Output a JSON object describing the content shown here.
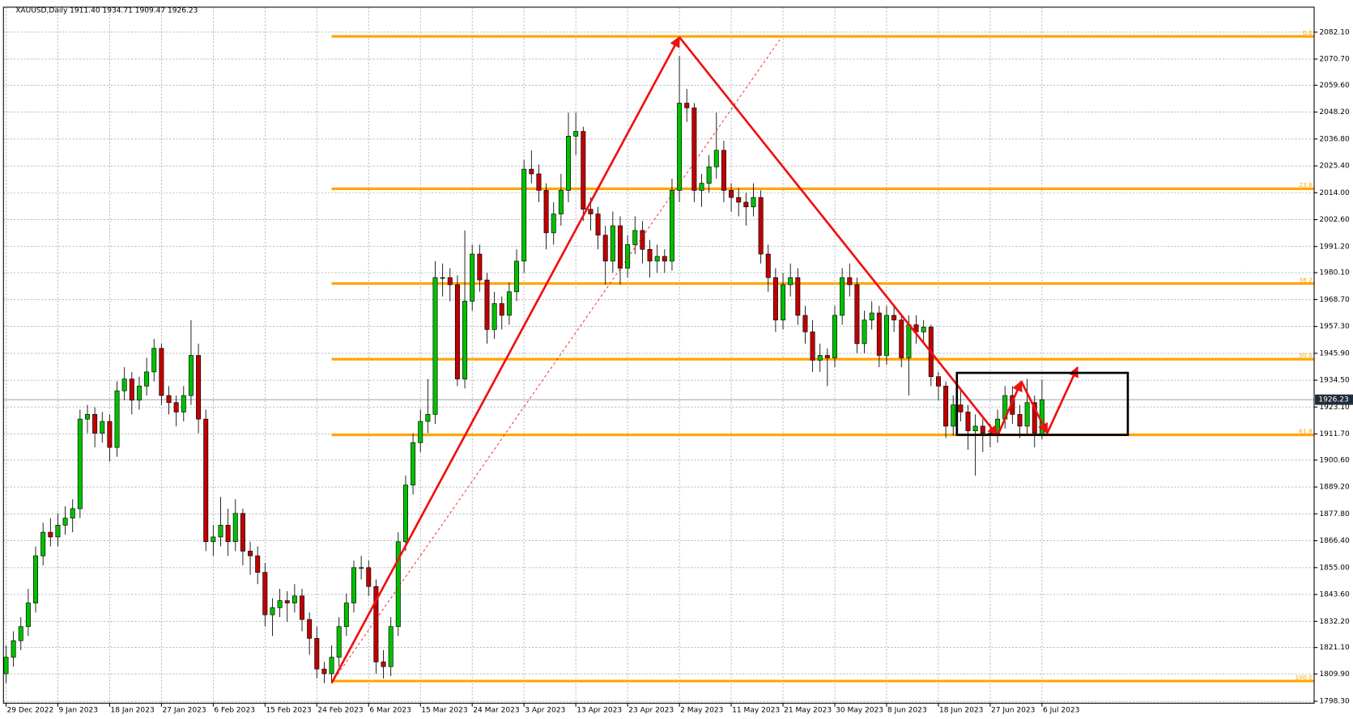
{
  "chart_data": {
    "type": "candlestick",
    "title": "XAUUSD,Daily  1911.40 1934.71 1909.47 1926.23",
    "up_color": "#00c000",
    "down_color": "#c00000",
    "grid": true,
    "ylim": [
      1797.5,
      2092.7
    ],
    "yticks": [
      {
        "value": 2082.1,
        "label": "2082.10"
      },
      {
        "value": 2070.7,
        "label": "2070.70"
      },
      {
        "value": 2059.6,
        "label": "2059.60"
      },
      {
        "value": 2048.2,
        "label": "2048.20"
      },
      {
        "value": 2036.8,
        "label": "2036.80"
      },
      {
        "value": 2025.4,
        "label": "2025.40"
      },
      {
        "value": 2014,
        "label": "2014.00"
      },
      {
        "value": 2002.6,
        "label": "2002.60"
      },
      {
        "value": 1991.2,
        "label": "1991.20"
      },
      {
        "value": 1980.1,
        "label": "1980.10"
      },
      {
        "value": 1968.7,
        "label": "1968.70"
      },
      {
        "value": 1957.3,
        "label": "1957.30"
      },
      {
        "value": 1945.9,
        "label": "1945.90"
      },
      {
        "value": 1934.5,
        "label": "1934.50"
      },
      {
        "value": 1923.1,
        "label": "1923.10"
      },
      {
        "value": 1911.7,
        "label": "1911.70"
      },
      {
        "value": 1900.6,
        "label": "1900.60"
      },
      {
        "value": 1889.2,
        "label": "1889.20"
      },
      {
        "value": 1877.8,
        "label": "1877.80"
      },
      {
        "value": 1866.4,
        "label": "1866.40"
      },
      {
        "value": 1855,
        "label": "1855.00"
      },
      {
        "value": 1843.6,
        "label": "1843.60"
      },
      {
        "value": 1832.2,
        "label": "1832.20"
      },
      {
        "value": 1821.1,
        "label": "1821.10"
      },
      {
        "value": 1809.9,
        "label": "1809.90"
      },
      {
        "value": 1798.3,
        "label": "1798.30"
      }
    ],
    "xticks": [
      {
        "value": 0,
        "label": "29 Dec 2022"
      },
      {
        "value": 7,
        "label": "9 Jan 2023"
      },
      {
        "value": 14,
        "label": "18 Jan 2023"
      },
      {
        "value": 21,
        "label": "27 Jan 2023"
      },
      {
        "value": 28,
        "label": "6 Feb 2023"
      },
      {
        "value": 35,
        "label": "15 Feb 2023"
      },
      {
        "value": 42,
        "label": "24 Feb 2023"
      },
      {
        "value": 49,
        "label": "6 Mar 2023"
      },
      {
        "value": 56,
        "label": "15 Mar 2023"
      },
      {
        "value": 63,
        "label": "24 Mar 2023"
      },
      {
        "value": 70,
        "label": "3 Apr 2023"
      },
      {
        "value": 77,
        "label": "13 Apr 2023"
      },
      {
        "value": 84,
        "label": "23 Apr 2023"
      },
      {
        "value": 91,
        "label": "2 May 2023"
      },
      {
        "value": 98,
        "label": "11 May 2023"
      },
      {
        "value": 105,
        "label": "21 May 2023"
      },
      {
        "value": 112,
        "label": "30 May 2023"
      },
      {
        "value": 119,
        "label": "8 Jun 2023"
      },
      {
        "value": 126,
        "label": "18 Jun 2023"
      },
      {
        "value": 133,
        "label": "27 Jun 2023"
      },
      {
        "value": 140,
        "label": "6 Jul 2023"
      }
    ],
    "last_price": {
      "value": 1926.23,
      "label": "1926.23"
    },
    "fib_levels": [
      {
        "value": 2080.3,
        "label": "0.0"
      },
      {
        "value": 2015.7,
        "label": "23.6"
      },
      {
        "value": 1975.5,
        "label": "38.2"
      },
      {
        "value": 1943.4,
        "label": "50.0"
      },
      {
        "value": 1911.3,
        "label": "61.8"
      },
      {
        "value": 1806.9,
        "label": "100.0"
      }
    ],
    "fib_start": 44,
    "arrows": [
      [
        [
          44,
          1806
        ],
        [
          91,
          2080
        ]
      ],
      [
        [
          91,
          2080
        ],
        [
          134,
          1911
        ]
      ],
      [
        [
          134,
          1911
        ],
        [
          137.2,
          1934
        ]
      ],
      [
        [
          137.2,
          1934
        ],
        [
          140.7,
          1912
        ]
      ],
      [
        [
          140.7,
          1912
        ],
        [
          144.8,
          1940
        ]
      ]
    ],
    "dashed_line": [
      [
        44,
        1806
      ],
      [
        104.8,
        2080
      ]
    ],
    "box": [
      [
        128.5,
        1937.6
      ],
      [
        151.6,
        1911.3
      ]
    ],
    "candles": [
      [
        1810,
        1822,
        1806,
        1817
      ],
      [
        1817,
        1828,
        1813,
        1824
      ],
      [
        1824,
        1834,
        1820,
        1830
      ],
      [
        1830,
        1846,
        1826,
        1840
      ],
      [
        1840,
        1864,
        1836,
        1860
      ],
      [
        1860,
        1874,
        1856,
        1870
      ],
      [
        1870,
        1876,
        1864,
        1868
      ],
      [
        1868,
        1878,
        1864,
        1873
      ],
      [
        1873,
        1881,
        1869,
        1876
      ],
      [
        1876,
        1884,
        1870,
        1880
      ],
      [
        1880,
        1922,
        1876,
        1918
      ],
      [
        1918,
        1924,
        1912,
        1920
      ],
      [
        1920,
        1923,
        1906,
        1912
      ],
      [
        1912,
        1921,
        1908,
        1917
      ],
      [
        1917,
        1920,
        1900,
        1906
      ],
      [
        1906,
        1934,
        1902,
        1930
      ],
      [
        1930,
        1940,
        1926,
        1935
      ],
      [
        1935,
        1938,
        1920,
        1926
      ],
      [
        1926,
        1936,
        1922,
        1932
      ],
      [
        1932,
        1944,
        1928,
        1938
      ],
      [
        1938,
        1952,
        1934,
        1948
      ],
      [
        1948,
        1950,
        1924,
        1928
      ],
      [
        1928,
        1932,
        1920,
        1925
      ],
      [
        1925,
        1928,
        1915,
        1921
      ],
      [
        1921,
        1932,
        1917,
        1928
      ],
      [
        1928,
        1960,
        1924,
        1945
      ],
      [
        1945,
        1950,
        1912,
        1918
      ],
      [
        1918,
        1922,
        1862,
        1866
      ],
      [
        1866,
        1873,
        1860,
        1868
      ],
      [
        1868,
        1885,
        1864,
        1873
      ],
      [
        1873,
        1880,
        1860,
        1866
      ],
      [
        1866,
        1884,
        1862,
        1878
      ],
      [
        1878,
        1880,
        1856,
        1862
      ],
      [
        1862,
        1866,
        1852,
        1860
      ],
      [
        1860,
        1864,
        1848,
        1853
      ],
      [
        1853,
        1857,
        1830,
        1835
      ],
      [
        1835,
        1842,
        1826,
        1838
      ],
      [
        1838,
        1846,
        1834,
        1841
      ],
      [
        1841,
        1845,
        1832,
        1840
      ],
      [
        1840,
        1848,
        1836,
        1843
      ],
      [
        1843,
        1846,
        1828,
        1833
      ],
      [
        1833,
        1836,
        1818,
        1825
      ],
      [
        1825,
        1830,
        1808,
        1812
      ],
      [
        1812,
        1815,
        1806,
        1810
      ],
      [
        1810,
        1822,
        1806,
        1817
      ],
      [
        1817,
        1834,
        1813,
        1830
      ],
      [
        1830,
        1844,
        1826,
        1840
      ],
      [
        1840,
        1858,
        1836,
        1855
      ],
      [
        1855,
        1860,
        1850,
        1855
      ],
      [
        1855,
        1858,
        1843,
        1847
      ],
      [
        1847,
        1850,
        1810,
        1815
      ],
      [
        1815,
        1820,
        1808,
        1813
      ],
      [
        1813,
        1834,
        1809,
        1830
      ],
      [
        1830,
        1870,
        1826,
        1866
      ],
      [
        1866,
        1894,
        1862,
        1890
      ],
      [
        1890,
        1912,
        1886,
        1908
      ],
      [
        1908,
        1922,
        1904,
        1917
      ],
      [
        1917,
        1935,
        1912,
        1920
      ],
      [
        1920,
        1985,
        1916,
        1978
      ],
      [
        1978,
        1984,
        1970,
        1978
      ],
      [
        1978,
        1982,
        1968,
        1975
      ],
      [
        1975,
        1979,
        1932,
        1935
      ],
      [
        1935,
        1998,
        1931,
        1968
      ],
      [
        1968,
        1992,
        1964,
        1988
      ],
      [
        1988,
        1992,
        1972,
        1977
      ],
      [
        1977,
        1980,
        1950,
        1956
      ],
      [
        1956,
        1972,
        1952,
        1967
      ],
      [
        1967,
        1970,
        1956,
        1962
      ],
      [
        1962,
        1976,
        1958,
        1972
      ],
      [
        1972,
        1990,
        1968,
        1985
      ],
      [
        1985,
        2028,
        1980,
        2024
      ],
      [
        2024,
        2032,
        2018,
        2022
      ],
      [
        2022,
        2026,
        2010,
        2015
      ],
      [
        2015,
        2018,
        1990,
        1997
      ],
      [
        1997,
        2010,
        1992,
        2005
      ],
      [
        2005,
        2022,
        2000,
        2015
      ],
      [
        2015,
        2048,
        2010,
        2038
      ],
      [
        2038,
        2048,
        2030,
        2040
      ],
      [
        2040,
        2042,
        2002,
        2007
      ],
      [
        2007,
        2012,
        1998,
        2005
      ],
      [
        2005,
        2008,
        1990,
        1996
      ],
      [
        1996,
        2000,
        1975,
        1985
      ],
      [
        1985,
        2006,
        1980,
        2000
      ],
      [
        2000,
        2004,
        1975,
        1982
      ],
      [
        1982,
        1996,
        1978,
        1992
      ],
      [
        1992,
        2004,
        1988,
        1998
      ],
      [
        1998,
        2002,
        1984,
        1990
      ],
      [
        1990,
        1994,
        1978,
        1985
      ],
      [
        1985,
        1992,
        1980,
        1987
      ],
      [
        1987,
        1990,
        1980,
        1985
      ],
      [
        1985,
        2020,
        1981,
        2015
      ],
      [
        2015,
        2072,
        2010,
        2052
      ],
      [
        2052,
        2058,
        2044,
        2050
      ],
      [
        2050,
        2052,
        2010,
        2015
      ],
      [
        2015,
        2022,
        2008,
        2018
      ],
      [
        2018,
        2030,
        2014,
        2025
      ],
      [
        2025,
        2048,
        2020,
        2032
      ],
      [
        2032,
        2036,
        2010,
        2015
      ],
      [
        2015,
        2018,
        2006,
        2012
      ],
      [
        2012,
        2016,
        2004,
        2010
      ],
      [
        2010,
        2014,
        2000,
        2008
      ],
      [
        2008,
        2018,
        2004,
        2012
      ],
      [
        2012,
        2015,
        1984,
        1988
      ],
      [
        1988,
        1992,
        1972,
        1978
      ],
      [
        1978,
        1982,
        1955,
        1960
      ],
      [
        1960,
        1980,
        1956,
        1975
      ],
      [
        1975,
        1984,
        1970,
        1978
      ],
      [
        1978,
        1982,
        1958,
        1962
      ],
      [
        1962,
        1966,
        1950,
        1955
      ],
      [
        1955,
        1960,
        1938,
        1943
      ],
      [
        1943,
        1950,
        1938,
        1945
      ],
      [
        1945,
        1948,
        1932,
        1944
      ],
      [
        1944,
        1966,
        1940,
        1962
      ],
      [
        1962,
        1982,
        1958,
        1978
      ],
      [
        1978,
        1984,
        1970,
        1975
      ],
      [
        1975,
        1978,
        1946,
        1950
      ],
      [
        1950,
        1964,
        1946,
        1960
      ],
      [
        1960,
        1968,
        1956,
        1963
      ],
      [
        1963,
        1966,
        1940,
        1945
      ],
      [
        1945,
        1966,
        1941,
        1962
      ],
      [
        1962,
        1966,
        1955,
        1960
      ],
      [
        1960,
        1962,
        1940,
        1944
      ],
      [
        1944,
        1962,
        1928,
        1958
      ],
      [
        1958,
        1962,
        1950,
        1955
      ],
      [
        1955,
        1960,
        1950,
        1957
      ],
      [
        1957,
        1958,
        1932,
        1936
      ],
      [
        1936,
        1938,
        1926,
        1932
      ],
      [
        1932,
        1934,
        1910,
        1915
      ],
      [
        1915,
        1928,
        1911,
        1924
      ],
      [
        1924,
        1930,
        1917,
        1921
      ],
      [
        1921,
        1924,
        1905,
        1913
      ],
      [
        1913,
        1920,
        1894,
        1915
      ],
      [
        1915,
        1918,
        1904,
        1912
      ],
      [
        1912,
        1916,
        1906,
        1912
      ],
      [
        1912,
        1922,
        1908,
        1918
      ],
      [
        1918,
        1932,
        1914,
        1928
      ],
      [
        1928,
        1932,
        1916,
        1920
      ],
      [
        1920,
        1924,
        1910,
        1915
      ],
      [
        1915,
        1935,
        1911,
        1925
      ],
      [
        1925,
        1928,
        1906,
        1912
      ],
      [
        1911.4,
        1934.71,
        1909.47,
        1926.23
      ]
    ]
  }
}
